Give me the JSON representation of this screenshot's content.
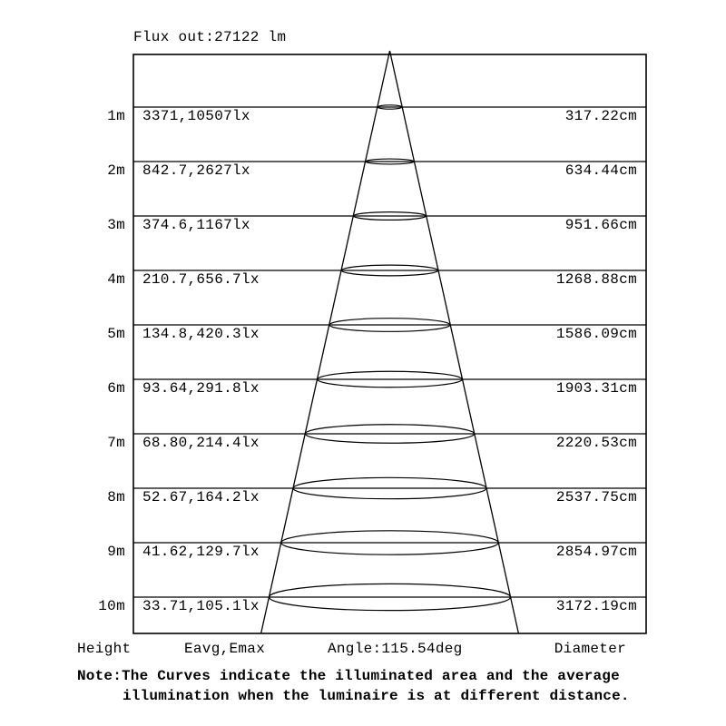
{
  "title": "Flux out:27122 lm",
  "footer": {
    "height_label": "Height",
    "eavg_label": "Eavg,Emax",
    "angle_label": "Angle:115.54deg",
    "diameter_label": "Diameter"
  },
  "note": {
    "line1": "Note:The Curves indicate the illuminated area and the average",
    "line2": "illumination when the luminaire is at different distance."
  },
  "chart_data": {
    "type": "table",
    "title": "Flux out:27122 lm",
    "flux_out_lm": 27122,
    "beam_angle_deg": 115.54,
    "columns": [
      "Height",
      "Eavg,Emax",
      "Diameter"
    ],
    "rows": [
      {
        "height": "1m",
        "height_m": 1,
        "eavg_lx": 3371,
        "emax_lx": 10507,
        "eavg_emax": "3371,10507lx",
        "diameter_cm": 317.22,
        "diameter": "317.22cm"
      },
      {
        "height": "2m",
        "height_m": 2,
        "eavg_lx": 842.7,
        "emax_lx": 2627,
        "eavg_emax": "842.7,2627lx",
        "diameter_cm": 634.44,
        "diameter": "634.44cm"
      },
      {
        "height": "3m",
        "height_m": 3,
        "eavg_lx": 374.6,
        "emax_lx": 1167,
        "eavg_emax": "374.6,1167lx",
        "diameter_cm": 951.66,
        "diameter": "951.66cm"
      },
      {
        "height": "4m",
        "height_m": 4,
        "eavg_lx": 210.7,
        "emax_lx": 656.7,
        "eavg_emax": "210.7,656.7lx",
        "diameter_cm": 1268.88,
        "diameter": "1268.88cm"
      },
      {
        "height": "5m",
        "height_m": 5,
        "eavg_lx": 134.8,
        "emax_lx": 420.3,
        "eavg_emax": "134.8,420.3lx",
        "diameter_cm": 1586.09,
        "diameter": "1586.09cm"
      },
      {
        "height": "6m",
        "height_m": 6,
        "eavg_lx": 93.64,
        "emax_lx": 291.8,
        "eavg_emax": "93.64,291.8lx",
        "diameter_cm": 1903.31,
        "diameter": "1903.31cm"
      },
      {
        "height": "7m",
        "height_m": 7,
        "eavg_lx": 68.8,
        "emax_lx": 214.4,
        "eavg_emax": "68.80,214.4lx",
        "diameter_cm": 2220.53,
        "diameter": "2220.53cm"
      },
      {
        "height": "8m",
        "height_m": 8,
        "eavg_lx": 52.67,
        "emax_lx": 164.2,
        "eavg_emax": "52.67,164.2lx",
        "diameter_cm": 2537.75,
        "diameter": "2537.75cm"
      },
      {
        "height": "9m",
        "height_m": 9,
        "eavg_lx": 41.62,
        "emax_lx": 129.7,
        "eavg_emax": "41.62,129.7lx",
        "diameter_cm": 2854.97,
        "diameter": "2854.97cm"
      },
      {
        "height": "10m",
        "height_m": 10,
        "eavg_lx": 33.71,
        "emax_lx": 105.1,
        "eavg_emax": "33.71,105.1lx",
        "diameter_cm": 3172.19,
        "diameter": "3172.19cm"
      }
    ],
    "layout_hints": {
      "grid": "horizontal lines per height row",
      "legend": "none",
      "axis": "heights left, Eavg/Emax inside-left, diameters right"
    },
    "colors": {
      "foreground": "#000000",
      "background": "#ffffff"
    }
  }
}
